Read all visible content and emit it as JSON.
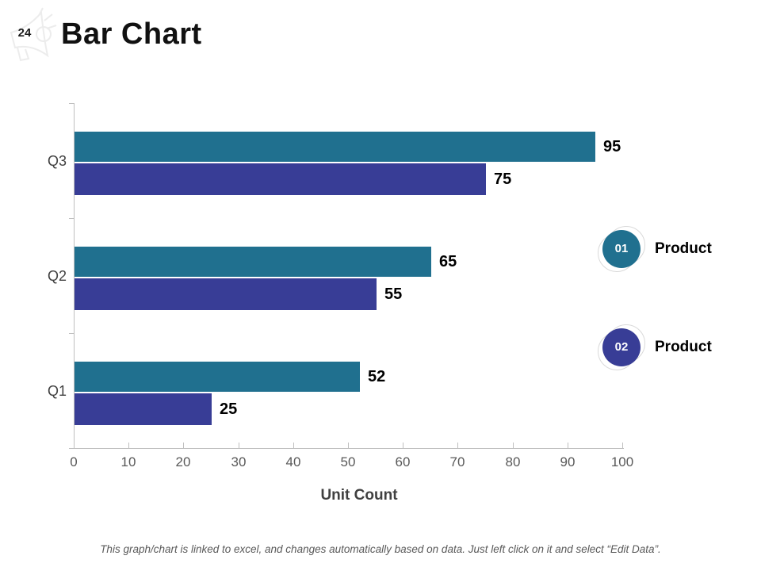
{
  "slide": {
    "number": "24",
    "title": "Bar Chart",
    "footer_note": "This graph/chart is linked to excel, and changes automatically based on data. Just left click on it and select “Edit Data”."
  },
  "colors": {
    "series1": "#20708F",
    "series2": "#383D96",
    "axis": "#BFBFBF",
    "tick_label": "#595959",
    "category_label": "#404040",
    "value_label": "#000000",
    "legend_ring": "#D9D9D9"
  },
  "legend": {
    "entries": [
      {
        "badge": "01",
        "label": "Product",
        "color": "#20708F"
      },
      {
        "badge": "02",
        "label": "Product",
        "color": "#383D96"
      }
    ]
  },
  "chart_data": {
    "type": "bar",
    "orientation": "horizontal",
    "title": "Bar Chart",
    "categories": [
      "Q3",
      "Q2",
      "Q1"
    ],
    "series": [
      {
        "name": "Product 01",
        "color": "#20708F",
        "values": [
          95,
          65,
          52
        ]
      },
      {
        "name": "Product 02",
        "color": "#383D96",
        "values": [
          75,
          55,
          25
        ]
      }
    ],
    "xlabel": "Unit Count",
    "xlim": [
      0,
      100
    ],
    "xticks": [
      0,
      10,
      20,
      30,
      40,
      50,
      60,
      70,
      80,
      90,
      100
    ],
    "grid": false,
    "value_labels": true,
    "legend_position": "right"
  }
}
